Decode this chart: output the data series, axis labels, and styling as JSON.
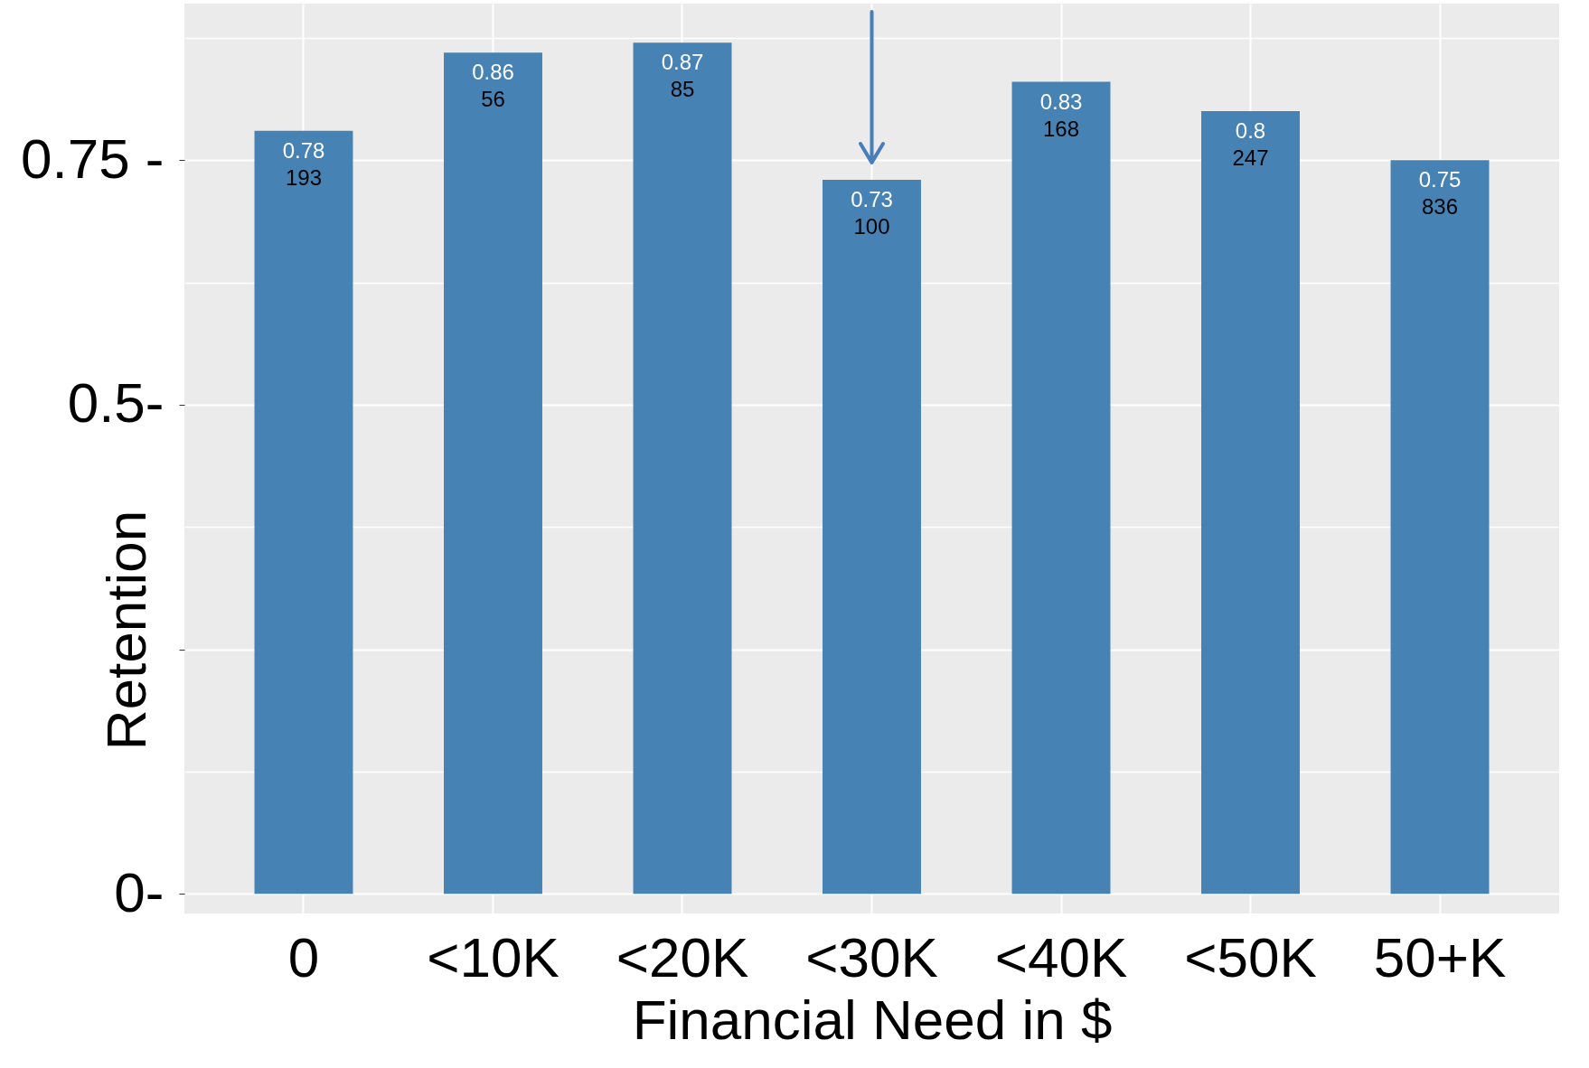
{
  "chart_data": {
    "type": "bar",
    "xlabel": "Financial Need in $",
    "ylabel": "Retention",
    "categories": [
      "0",
      "<10K",
      "<20K",
      "<30K",
      "<40K",
      "<50K",
      "50+K"
    ],
    "values": [
      0.78,
      0.86,
      0.87,
      0.73,
      0.83,
      0.8,
      0.75
    ],
    "color": "#4682b4",
    "data_labels": true,
    "annotations": [
      {
        "text": "193",
        "x": "0",
        "y": 0.78
      },
      {
        "text": "56",
        "x": "<10K",
        "y": 0.86
      },
      {
        "text": "85",
        "x": "<20K",
        "y": 0.87
      },
      {
        "text": "100",
        "x": "<30K",
        "y": 0.73
      },
      {
        "text": "168",
        "x": "<40K",
        "y": 0.83
      },
      {
        "text": "247",
        "x": "<50K",
        "y": 0.8
      },
      {
        "text": "836",
        "x": "50+K",
        "y": 0.75
      }
    ],
    "ylim": [
      -0.02,
      0.91
    ],
    "yticks": [
      {
        "value": 0,
        "label": "0-"
      },
      {
        "value": 0.25,
        "label": null
      },
      {
        "value": 0.5,
        "label": "0.5-"
      },
      {
        "value": 0.75,
        "label": "0.75 -"
      }
    ],
    "grid": true
  }
}
